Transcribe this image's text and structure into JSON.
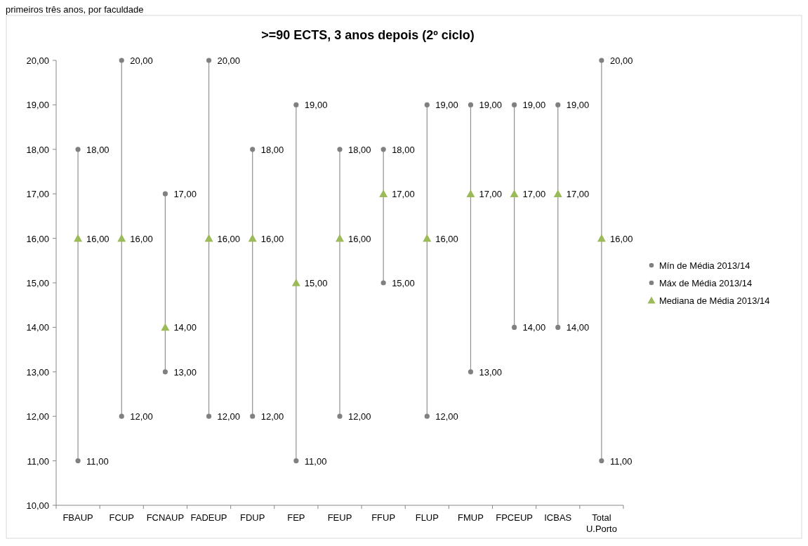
{
  "chart_data": {
    "type": "scatter",
    "title": ">=90 ECTS, 3 anos depois (2º ciclo)",
    "annotations": [
      "primeiros três anos, por faculdade"
    ],
    "categories": [
      "FBAUP",
      "FCUP",
      "FCNAUP",
      "FADEUP",
      "FDUP",
      "FEP",
      "FEUP",
      "FFUP",
      "FLUP",
      "FMUP",
      "FPCEUP",
      "ICBAS",
      "Total U.Porto"
    ],
    "ylim": [
      10,
      20
    ],
    "yticks": [
      {
        "value": 10,
        "label": "10,00"
      },
      {
        "value": 11,
        "label": "11,00"
      },
      {
        "value": 12,
        "label": "12,00"
      },
      {
        "value": 13,
        "label": "13,00"
      },
      {
        "value": 14,
        "label": "14,00"
      },
      {
        "value": 15,
        "label": "15,00"
      },
      {
        "value": 16,
        "label": "16,00"
      },
      {
        "value": 17,
        "label": "17,00"
      },
      {
        "value": 18,
        "label": "18,00"
      },
      {
        "value": 19,
        "label": "19,00"
      },
      {
        "value": 20,
        "label": "20,00"
      }
    ],
    "legend": "right",
    "grid": false,
    "series": [
      {
        "name": "Mín de Média 2013/14",
        "color": "#808080",
        "marker": "circle",
        "values": [
          11,
          12,
          13,
          12,
          12,
          11,
          12,
          15,
          12,
          13,
          14,
          14,
          11
        ],
        "value_labels": [
          "11,00",
          "12,00",
          "13,00",
          "12,00",
          "12,00",
          "11,00",
          "12,00",
          "15,00",
          "12,00",
          "13,00",
          "14,00",
          "14,00",
          "11,00"
        ]
      },
      {
        "name": "Máx de Média 2013/14",
        "color": "#808080",
        "marker": "circle",
        "values": [
          18,
          20,
          17,
          20,
          18,
          19,
          18,
          18,
          19,
          19,
          19,
          19,
          20
        ],
        "value_labels": [
          "18,00",
          "20,00",
          "17,00",
          "20,00",
          "18,00",
          "19,00",
          "18,00",
          "18,00",
          "19,00",
          "19,00",
          "19,00",
          "19,00",
          "20,00"
        ]
      },
      {
        "name": "Mediana de Média 2013/14",
        "color": "#9bbb59",
        "marker": "triangle",
        "values": [
          16,
          16,
          14,
          16,
          16,
          15,
          16,
          17,
          16,
          17,
          17,
          17,
          16
        ],
        "value_labels": [
          "16,00",
          "16,00",
          "14,00",
          "16,00",
          "16,00",
          "15,00",
          "16,00",
          "17,00",
          "16,00",
          "17,00",
          "17,00",
          "17,00",
          "16,00"
        ]
      }
    ]
  }
}
